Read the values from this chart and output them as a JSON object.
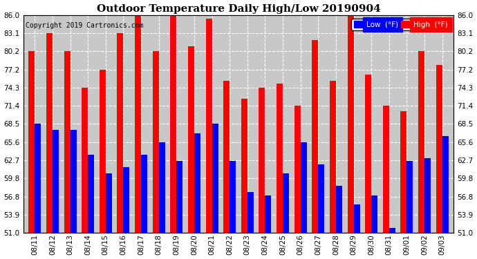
{
  "title": "Outdoor Temperature Daily High/Low 20190904",
  "copyright": "Copyright 2019 Cartronics.com",
  "legend_low": "Low  (°F)",
  "legend_high": "High  (°F)",
  "categories": [
    "08/11",
    "08/12",
    "08/13",
    "08/14",
    "08/15",
    "08/16",
    "08/17",
    "08/18",
    "08/19",
    "08/20",
    "08/21",
    "08/22",
    "08/23",
    "08/24",
    "08/25",
    "08/26",
    "08/27",
    "08/28",
    "08/29",
    "08/30",
    "08/31",
    "09/01",
    "09/02",
    "09/03"
  ],
  "high_values": [
    80.2,
    83.1,
    80.2,
    74.3,
    77.2,
    83.1,
    86.0,
    80.2,
    86.0,
    81.0,
    85.5,
    75.5,
    72.5,
    74.3,
    75.0,
    71.4,
    82.0,
    75.5,
    86.0,
    76.5,
    71.4,
    70.5,
    80.2,
    78.0
  ],
  "low_values": [
    68.5,
    67.5,
    67.5,
    63.5,
    60.5,
    61.5,
    63.5,
    65.5,
    62.5,
    67.0,
    68.5,
    62.5,
    57.5,
    57.0,
    60.5,
    65.5,
    62.0,
    58.5,
    55.5,
    57.0,
    51.8,
    62.5,
    63.0,
    66.5
  ],
  "ymin": 51.0,
  "ymax": 86.0,
  "yticks": [
    51.0,
    53.9,
    56.8,
    59.8,
    62.7,
    65.6,
    68.5,
    71.4,
    74.3,
    77.2,
    80.2,
    83.1,
    86.0
  ],
  "bar_color_high": "#ff0000",
  "bar_color_low": "#0000ff",
  "background_color": "#ffffff",
  "plot_bg_color": "#c8c8c8",
  "title_fontsize": 11,
  "copyright_fontsize": 7,
  "tick_fontsize": 7.5,
  "bar_width": 0.35
}
